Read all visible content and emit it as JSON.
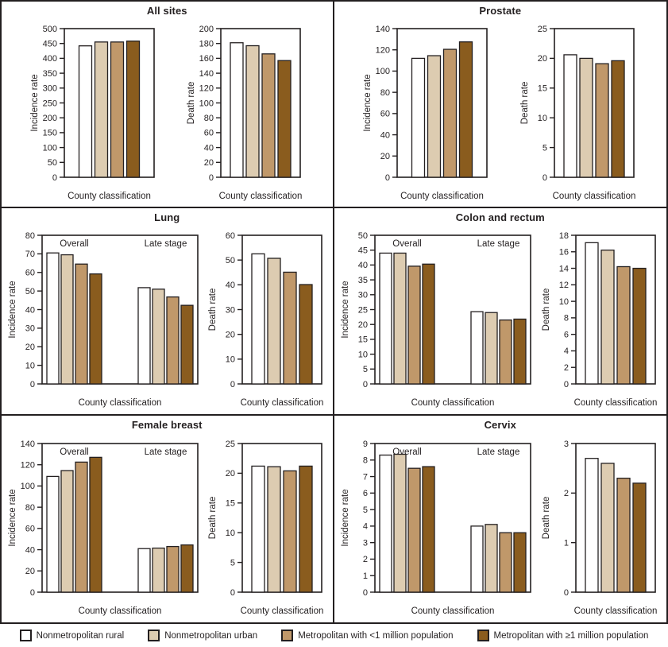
{
  "figure": {
    "text_color": "#231f20",
    "axis_color": "#231f20",
    "series": [
      {
        "label": "Nonmetropolitan rural",
        "color": "#ffffff"
      },
      {
        "label": "Nonmetropolitan urban",
        "color": "#ddccb1"
      },
      {
        "label": "Metropolitan with <1 million population",
        "color": "#c0986a"
      },
      {
        "label": "Metropolitan with ≥1 million population",
        "color": "#8a5c1e"
      }
    ]
  },
  "chart_data": [
    {
      "title": "All sites",
      "charts": [
        {
          "type": "bar",
          "kind": "incidence",
          "ylabel": "Incidence rate",
          "xlabel": "County classification",
          "ylim": [
            0,
            500
          ],
          "ytick_step": 50,
          "grid": false,
          "groups": [
            {
              "label": "",
              "values": [
                442,
                455,
                455,
                458
              ]
            }
          ]
        },
        {
          "type": "bar",
          "kind": "death",
          "ylabel": "Death rate",
          "xlabel": "County classification",
          "ylim": [
            0,
            200
          ],
          "ytick_step": 20,
          "grid": false,
          "groups": [
            {
              "label": "",
              "values": [
                181,
                177,
                166,
                157
              ]
            }
          ]
        }
      ]
    },
    {
      "title": "Prostate",
      "charts": [
        {
          "type": "bar",
          "kind": "incidence",
          "ylabel": "Incidence rate",
          "xlabel": "County classification",
          "ylim": [
            0,
            140
          ],
          "ytick_step": 20,
          "grid": false,
          "groups": [
            {
              "label": "",
              "values": [
                112,
                114.5,
                120.5,
                127.5
              ]
            }
          ]
        },
        {
          "type": "bar",
          "kind": "death",
          "ylabel": "Death rate",
          "xlabel": "County classification",
          "ylim": [
            0,
            25
          ],
          "ytick_step": 5,
          "grid": false,
          "groups": [
            {
              "label": "",
              "values": [
                20.6,
                20.0,
                19.1,
                19.6
              ]
            }
          ]
        }
      ]
    },
    {
      "title": "Lung",
      "charts": [
        {
          "type": "bar",
          "kind": "incidence",
          "ylabel": "Incidence rate",
          "xlabel": "County classification",
          "ylim": [
            0,
            80
          ],
          "ytick_step": 10,
          "grid": false,
          "groups": [
            {
              "label": "Overall",
              "values": [
                70.5,
                69.5,
                64.5,
                59.2
              ]
            },
            {
              "label": "Late stage",
              "values": [
                51.8,
                51.0,
                46.8,
                42.3
              ]
            }
          ]
        },
        {
          "type": "bar",
          "kind": "death",
          "ylabel": "Death rate",
          "xlabel": "County classification",
          "ylim": [
            0,
            60
          ],
          "ytick_step": 10,
          "grid": false,
          "groups": [
            {
              "label": "",
              "values": [
                52.5,
                50.7,
                45.1,
                40.1
              ]
            }
          ]
        }
      ]
    },
    {
      "title": "Colon and rectum",
      "charts": [
        {
          "type": "bar",
          "kind": "incidence",
          "ylabel": "Incidence rate",
          "xlabel": "County classification",
          "ylim": [
            0,
            50
          ],
          "ytick_step": 5,
          "grid": false,
          "groups": [
            {
              "label": "Overall",
              "values": [
                44.0,
                44.0,
                39.6,
                40.3
              ]
            },
            {
              "label": "Late stage",
              "values": [
                24.3,
                24.0,
                21.5,
                21.8
              ]
            }
          ]
        },
        {
          "type": "bar",
          "kind": "death",
          "ylabel": "Death rate",
          "xlabel": "County classification",
          "ylim": [
            0,
            18
          ],
          "ytick_step": 2,
          "grid": false,
          "groups": [
            {
              "label": "",
              "values": [
                17.1,
                16.2,
                14.2,
                14.0
              ]
            }
          ]
        }
      ]
    },
    {
      "title": "Female breast",
      "charts": [
        {
          "type": "bar",
          "kind": "incidence",
          "ylabel": "Incidence rate",
          "xlabel": "County classification",
          "ylim": [
            0,
            140
          ],
          "ytick_step": 20,
          "grid": false,
          "groups": [
            {
              "label": "Overall",
              "values": [
                109,
                114.5,
                122.5,
                127
              ]
            },
            {
              "label": "Late stage",
              "values": [
                41,
                41.5,
                43,
                44.5
              ]
            }
          ]
        },
        {
          "type": "bar",
          "kind": "death",
          "ylabel": "Death rate",
          "xlabel": "County classification",
          "ylim": [
            0,
            25
          ],
          "ytick_step": 5,
          "grid": false,
          "groups": [
            {
              "label": "",
              "values": [
                21.2,
                21.1,
                20.4,
                21.2
              ]
            }
          ]
        }
      ]
    },
    {
      "title": "Cervix",
      "charts": [
        {
          "type": "bar",
          "kind": "incidence",
          "ylabel": "Incidence rate",
          "xlabel": "County classification",
          "ylim": [
            0,
            9
          ],
          "ytick_step": 1,
          "grid": false,
          "groups": [
            {
              "label": "Overall",
              "values": [
                8.3,
                8.35,
                7.5,
                7.6
              ]
            },
            {
              "label": "Late stage",
              "values": [
                4.0,
                4.1,
                3.6,
                3.6
              ]
            }
          ]
        },
        {
          "type": "bar",
          "kind": "death",
          "ylabel": "Death rate",
          "xlabel": "County classification",
          "ylim": [
            0,
            3
          ],
          "ytick_step": 1,
          "grid": false,
          "groups": [
            {
              "label": "",
              "values": [
                2.7,
                2.6,
                2.3,
                2.2
              ]
            }
          ]
        }
      ]
    }
  ]
}
